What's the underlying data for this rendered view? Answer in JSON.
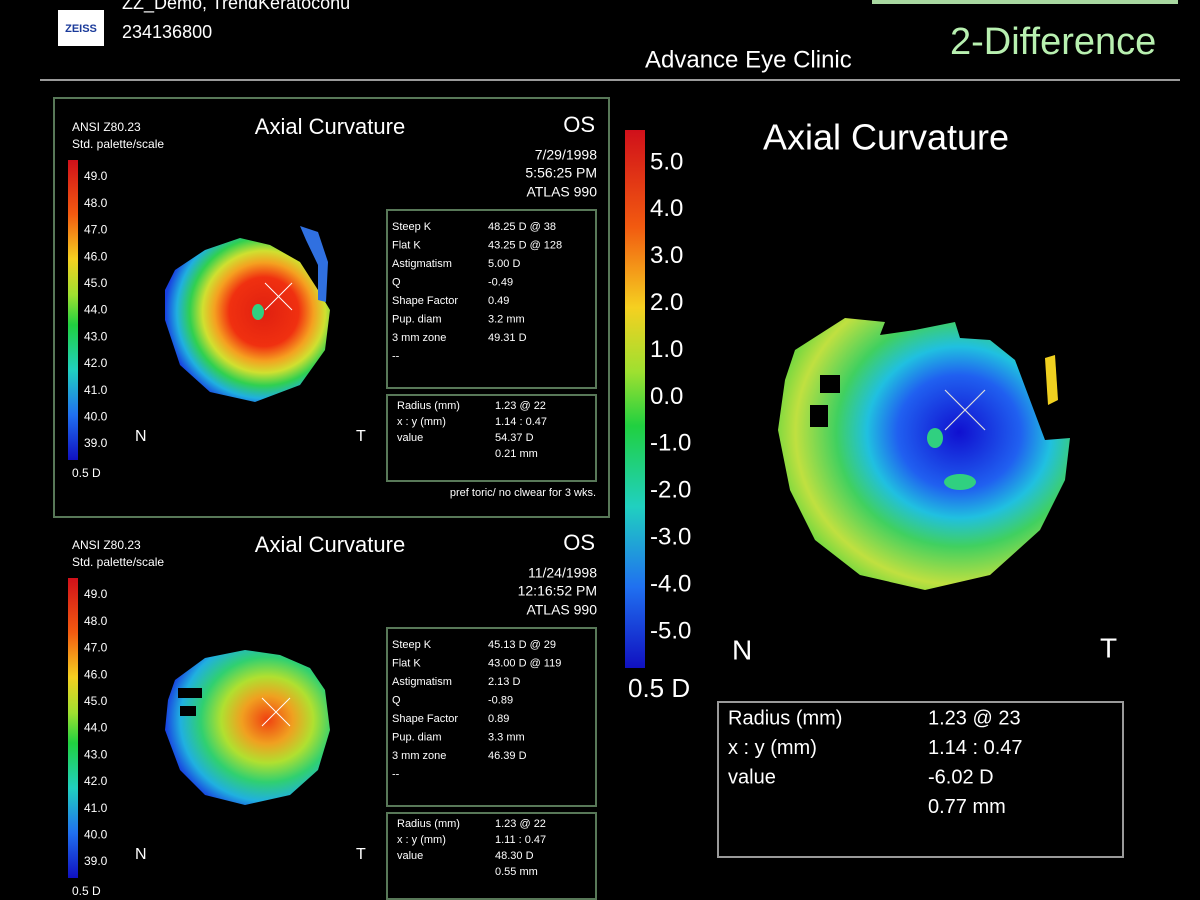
{
  "header": {
    "logo": "ZEISS",
    "patient": "ZZ_Demo, TrendKeratoconu",
    "id": "234136800",
    "clinic": "Advance Eye Clinic",
    "view": "2-Difference"
  },
  "panels": [
    {
      "standard": "ANSI Z80.23",
      "palette": "Std. palette/scale",
      "title": "Axial Curvature",
      "eye": "OS",
      "date": "7/29/1998",
      "time": "5:56:25 PM",
      "device": "ATLAS 990",
      "scale": [
        "49.0",
        "48.0",
        "47.0",
        "46.0",
        "45.0",
        "44.0",
        "43.0",
        "42.0",
        "41.0",
        "40.0",
        "39.0"
      ],
      "scale_unit": "0.5 D",
      "nasal": "N",
      "temporal": "T",
      "indices": [
        {
          "label": "Steep K",
          "value": "48.25 D @ 38"
        },
        {
          "label": "Flat K",
          "value": "43.25 D @ 128"
        },
        {
          "label": "Astigmatism",
          "value": "5.00 D"
        },
        {
          "label": "Q",
          "value": "-0.49"
        },
        {
          "label": "Shape Factor",
          "value": "0.49"
        },
        {
          "label": "Pup. diam",
          "value": "3.2 mm"
        },
        {
          "label": "3 mm zone",
          "value": "49.31 D"
        },
        {
          "label": "--"
        }
      ],
      "cursor": [
        {
          "label": "Radius (mm)",
          "value": "1.23 @ 22"
        },
        {
          "label": "x : y (mm)",
          "value": "1.14 : 0.47"
        },
        {
          "label": "value",
          "value": "54.37 D"
        },
        {
          "value": "0.21 mm"
        }
      ],
      "note": "pref toric/ no clwear for 3 wks."
    },
    {
      "standard": "ANSI Z80.23",
      "palette": "Std. palette/scale",
      "title": "Axial Curvature",
      "eye": "OS",
      "date": "11/24/1998",
      "time": "12:16:52 PM",
      "device": "ATLAS 990",
      "scale": [
        "49.0",
        "48.0",
        "47.0",
        "46.0",
        "45.0",
        "44.0",
        "43.0",
        "42.0",
        "41.0",
        "40.0",
        "39.0"
      ],
      "scale_unit": "0.5 D",
      "nasal": "N",
      "temporal": "T",
      "indices": [
        {
          "label": "Steep K",
          "value": "45.13 D @ 29"
        },
        {
          "label": "Flat K",
          "value": "43.00 D @ 119"
        },
        {
          "label": "Astigmatism",
          "value": "2.13 D"
        },
        {
          "label": "Q",
          "value": "-0.89"
        },
        {
          "label": "Shape Factor",
          "value": "0.89"
        },
        {
          "label": "Pup. diam",
          "value": "3.3 mm"
        },
        {
          "label": "3 mm zone",
          "value": "46.39 D"
        },
        {
          "label": "--"
        }
      ],
      "cursor": [
        {
          "label": "Radius (mm)",
          "value": "1.23 @ 22"
        },
        {
          "label": "x : y (mm)",
          "value": "1.11 : 0.47"
        },
        {
          "label": "value",
          "value": "48.30 D"
        },
        {
          "value": "0.55 mm"
        }
      ]
    }
  ],
  "difference": {
    "title": "Axial Curvature",
    "scale": [
      "5.0",
      "4.0",
      "3.0",
      "2.0",
      "1.0",
      "0.0",
      "-1.0",
      "-2.0",
      "-3.0",
      "-4.0",
      "-5.0"
    ],
    "scale_unit": "0.5 D",
    "nasal": "N",
    "temporal": "T",
    "cursor": [
      {
        "label": "Radius (mm)",
        "value": "1.23  @ 23"
      },
      {
        "label": "x : y (mm)",
        "value": "1.14 : 0.47"
      },
      {
        "label": "value",
        "value": "-6.02 D"
      },
      {
        "value": "0.77 mm"
      }
    ]
  }
}
